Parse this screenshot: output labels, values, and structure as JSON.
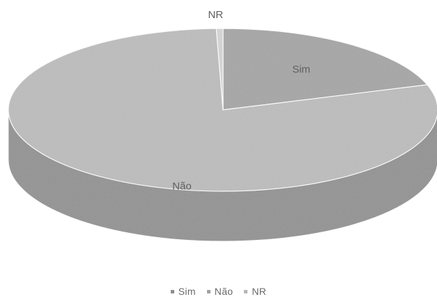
{
  "chart_data": {
    "type": "pie",
    "style": "3d",
    "categories": [
      "Sim",
      "Não",
      "NR"
    ],
    "values": [
      20,
      79.5,
      0.5
    ],
    "colors": [
      "#a6a6a6",
      "#bdbdbd",
      "#d6d6d6"
    ],
    "data_labels": [
      "Sim",
      "Não",
      "NR"
    ],
    "legend": {
      "position": "bottom",
      "entries": [
        "Sim",
        "Não",
        "NR"
      ]
    }
  }
}
